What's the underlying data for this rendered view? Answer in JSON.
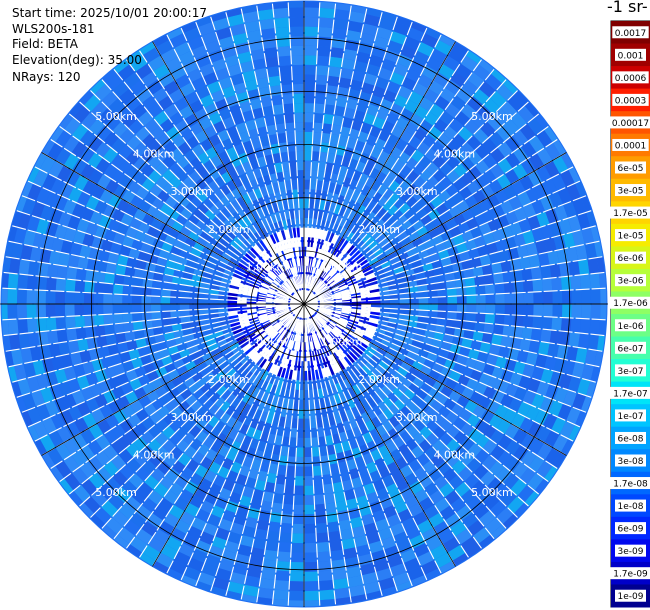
{
  "header": {
    "start_time": "Start time: 2025/10/01 20:00:17",
    "instrument": "WLS200s-181",
    "field": "Field: BETA",
    "elevation": "Elevation(deg): 35.00",
    "nrays": "NRays: 120"
  },
  "unit_label": "-1 sr-",
  "chart_data": {
    "type": "heatmap",
    "projection": "polar",
    "field": "BETA",
    "n_rays": 120,
    "elevation_deg": 35.0,
    "range_rings_km": [
      1,
      2,
      3,
      4,
      5
    ],
    "ring_labels": [
      "1.00km",
      "2.00km",
      "3.00km",
      "4.00km",
      "5.00km"
    ],
    "max_range_km": 5.7,
    "colorbar": {
      "scale": "log",
      "labels": [
        "0.0017",
        "0.001",
        "0.0006",
        "0.0003",
        "0.00017",
        "0.0001",
        "6e-05",
        "3e-05",
        "1.7e-05",
        "1e-05",
        "6e-06",
        "3e-06",
        "1.7e-06",
        "1e-06",
        "6e-07",
        "3e-07",
        "1.7e-07",
        "1e-07",
        "6e-08",
        "3e-08",
        "1.7e-08",
        "1e-08",
        "6e-09",
        "3e-09",
        "1.7e-09",
        "1e-09"
      ],
      "colors": [
        "#800000",
        "#a00000",
        "#cc0000",
        "#ff1e00",
        "#ff5500",
        "#ff7a00",
        "#ff9c00",
        "#ffba00",
        "#ffd500",
        "#f6ec00",
        "#d8f618",
        "#b6ff3a",
        "#8eff64",
        "#6cff86",
        "#46ffac",
        "#22ffd4",
        "#00e4f8",
        "#00c4ff",
        "#00a4ff",
        "#0088ff",
        "#0068ff",
        "#0048ff",
        "#0028ff",
        "#0008ee",
        "#0000c8",
        "#000090"
      ]
    },
    "typical_value": "3e-08 to 1e-07"
  }
}
